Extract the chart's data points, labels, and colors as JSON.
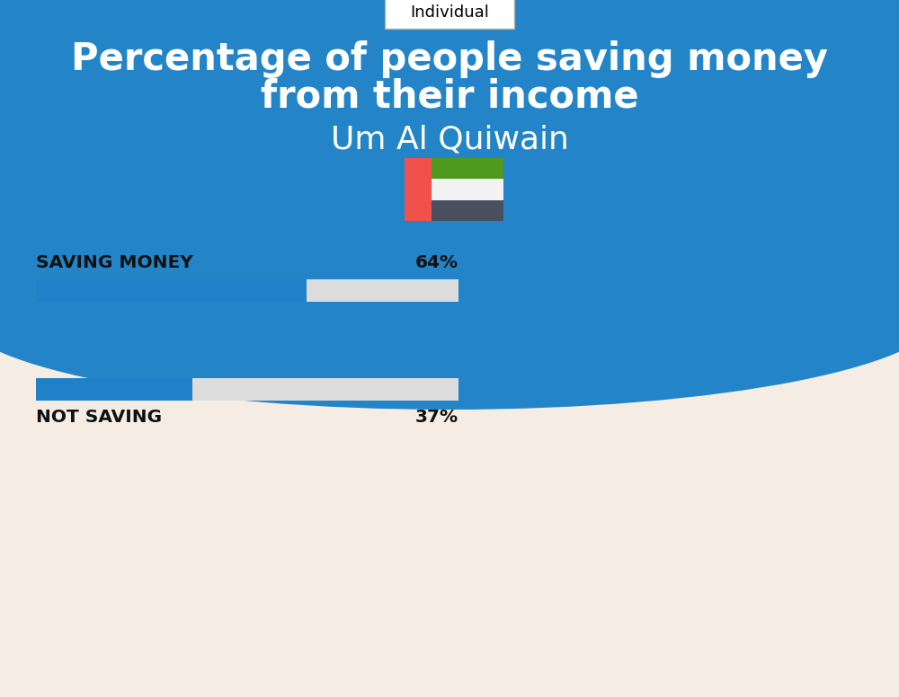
{
  "title_line1": "Percentage of people saving money",
  "title_line2": "from their income",
  "subtitle": "Um Al Quiwain",
  "tab_label": "Individual",
  "bg_top_color": "#2385C8",
  "bg_bottom_color": "#F5EDE3",
  "bar_color": "#2080C8",
  "bar_bg_color": "#DCDCDC",
  "saving_label": "SAVING MONEY",
  "saving_value": 64,
  "saving_text": "64%",
  "not_saving_label": "NOT SAVING",
  "not_saving_value": 37,
  "not_saving_text": "37%",
  "bar_max": 100,
  "title_color": "#FFFFFF",
  "subtitle_color": "#FFFFFF",
  "label_color": "#111111",
  "tab_border_color": "#AAAAAA",
  "flag_red": "#F0514A",
  "flag_green": "#4E9A1E",
  "flag_white": "#F2F2F2",
  "flag_dark": "#4A5060"
}
